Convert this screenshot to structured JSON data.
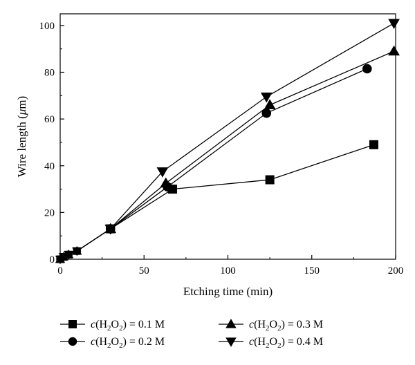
{
  "chart_data": {
    "type": "line",
    "xlabel": "Etching time (min)",
    "ylabel_prefix": "Wire length (",
    "ylabel_mu": "μ",
    "ylabel_suffix": "m)",
    "xlim": [
      0,
      200
    ],
    "ylim": [
      0,
      105
    ],
    "xticks": [
      0,
      50,
      100,
      150,
      200
    ],
    "yticks": [
      0,
      20,
      40,
      60,
      80,
      100
    ],
    "grid": false,
    "legend_position": "bottom",
    "series": [
      {
        "name": "c(H2O2) = 0.1 M",
        "legend": {
          "c": "c",
          "open": "(H",
          "sub1": "2",
          "mid": "O",
          "sub2": "2",
          "close": ") = 0.1 M"
        },
        "marker": "square",
        "x": [
          0,
          2,
          5,
          10,
          30,
          67,
          125,
          187
        ],
        "y": [
          0,
          1,
          2,
          3.5,
          13,
          30,
          34,
          49
        ]
      },
      {
        "name": "c(H2O2) = 0.2 M",
        "legend": {
          "c": "c",
          "open": "(H",
          "sub1": "2",
          "mid": "O",
          "sub2": "2",
          "close": ") = 0.2 M"
        },
        "marker": "circle",
        "x": [
          0,
          2,
          5,
          10,
          30,
          64,
          123,
          183
        ],
        "y": [
          0,
          1,
          2,
          3.5,
          13,
          31,
          62.5,
          81.5
        ]
      },
      {
        "name": "c(H2O2) = 0.3 M",
        "legend": {
          "c": "c",
          "open": "(H",
          "sub1": "2",
          "mid": "O",
          "sub2": "2",
          "close": ") = 0.3 M"
        },
        "marker": "triangle-up",
        "x": [
          0,
          2,
          5,
          10,
          30,
          63,
          125,
          199
        ],
        "y": [
          0,
          1,
          2,
          3.5,
          13,
          32.5,
          66,
          89
        ]
      },
      {
        "name": "c(H2O2) = 0.4 M",
        "legend": {
          "c": "c",
          "open": "(H",
          "sub1": "2",
          "mid": "O",
          "sub2": "2",
          "close": ") = 0.4 M"
        },
        "marker": "triangle-down",
        "x": [
          0,
          2,
          5,
          10,
          30,
          61,
          123,
          199
        ],
        "y": [
          0,
          1,
          2,
          3.5,
          13,
          37.5,
          69.5,
          101
        ]
      }
    ],
    "colors": {
      "line": "#000000",
      "marker": "#000000"
    }
  }
}
